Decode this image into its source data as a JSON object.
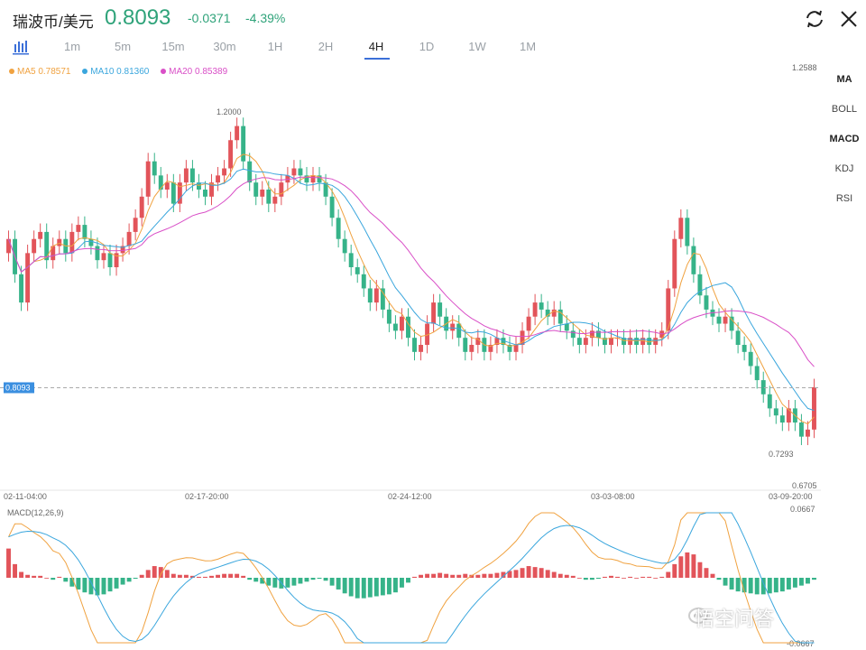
{
  "header": {
    "pair": "瑞波币/美元",
    "price": "0.8093",
    "change": "-0.0371",
    "change_pct": "-4.39%",
    "price_color": "#2fa37a"
  },
  "tabs": [
    {
      "label": "1m"
    },
    {
      "label": "5m"
    },
    {
      "label": "15m"
    },
    {
      "label": "30m"
    },
    {
      "label": "1H"
    },
    {
      "label": "2H"
    },
    {
      "label": "4H",
      "active": true
    },
    {
      "label": "1D"
    },
    {
      "label": "1W"
    },
    {
      "label": "1M"
    }
  ],
  "legend": {
    "ma5": "MA5 0.78571",
    "ma10": "MA10 0.81360",
    "ma20": "MA20 0.85389",
    "ma5_color": "#f0a240",
    "ma10_color": "#3aa6dd",
    "ma20_color": "#d94fc7"
  },
  "indicators": [
    "MA",
    "BOLL",
    "MACD",
    "KDJ",
    "RSI"
  ],
  "chart_data": {
    "type": "candlestick",
    "y_axis_top": "1.2588",
    "y_axis_bottom": "0.6705",
    "y_range": [
      0.6705,
      1.2588
    ],
    "current_price_label": "0.8093",
    "current_price": 0.8093,
    "high_label": "1.2000",
    "high": 1.2,
    "low_label": "0.7293",
    "low": 0.7293,
    "x_labels": [
      "02-11-04:00",
      "02-17-20:00",
      "02-24-12:00",
      "03-03-08:00",
      "03-09-20:00"
    ],
    "up_color": "#e2545a",
    "down_color": "#36b389",
    "closes": [
      1.02,
      0.97,
      0.93,
      1.0,
      1.02,
      1.03,
      0.99,
      1.01,
      1.02,
      1.0,
      1.03,
      1.04,
      1.02,
      1.01,
      0.99,
      1.0,
      0.98,
      1.0,
      1.01,
      1.03,
      1.05,
      1.08,
      1.13,
      1.11,
      1.09,
      1.1,
      1.07,
      1.1,
      1.12,
      1.1,
      1.09,
      1.08,
      1.1,
      1.11,
      1.12,
      1.16,
      1.18,
      1.13,
      1.1,
      1.08,
      1.09,
      1.07,
      1.08,
      1.1,
      1.11,
      1.12,
      1.11,
      1.1,
      1.11,
      1.1,
      1.08,
      1.05,
      1.02,
      1.0,
      0.98,
      0.97,
      0.95,
      0.93,
      0.95,
      0.92,
      0.9,
      0.89,
      0.91,
      0.88,
      0.86,
      0.87,
      0.9,
      0.93,
      0.91,
      0.89,
      0.9,
      0.88,
      0.86,
      0.87,
      0.88,
      0.86,
      0.87,
      0.88,
      0.87,
      0.86,
      0.87,
      0.89,
      0.91,
      0.93,
      0.92,
      0.91,
      0.92,
      0.9,
      0.89,
      0.88,
      0.87,
      0.88,
      0.89,
      0.88,
      0.87,
      0.88,
      0.88,
      0.87,
      0.88,
      0.87,
      0.88,
      0.87,
      0.88,
      0.89,
      0.95,
      1.02,
      1.05,
      1.01,
      0.97,
      0.94,
      0.92,
      0.91,
      0.9,
      0.91,
      0.89,
      0.87,
      0.86,
      0.84,
      0.82,
      0.8,
      0.78,
      0.77,
      0.76,
      0.78,
      0.76,
      0.74,
      0.75,
      0.81
    ],
    "macd_label": "MACD(12,26,9)",
    "macd_top": "0.0667",
    "macd_bottom": "-0.0667",
    "macd_range": [
      -0.0667,
      0.0667
    ],
    "macd_hist": [
      0.03,
      0.014,
      0.006,
      0.003,
      0.002,
      0.002,
      0.0,
      -0.002,
      0.001,
      -0.004,
      -0.009,
      -0.012,
      -0.015,
      -0.017,
      -0.018,
      -0.017,
      -0.014,
      -0.011,
      -0.007,
      -0.004,
      -0.001,
      0.003,
      0.008,
      0.012,
      0.011,
      0.008,
      0.004,
      0.003,
      0.003,
      0.002,
      0.001,
      0.001,
      0.002,
      0.003,
      0.004,
      0.004,
      0.004,
      0.002,
      -0.002,
      -0.004,
      -0.006,
      -0.008,
      -0.01,
      -0.011,
      -0.01,
      -0.008,
      -0.006,
      -0.004,
      -0.002,
      -0.001,
      -0.003,
      -0.008,
      -0.012,
      -0.016,
      -0.019,
      -0.021,
      -0.021,
      -0.02,
      -0.019,
      -0.018,
      -0.017,
      -0.015,
      -0.01,
      -0.005,
      0.001,
      0.003,
      0.004,
      0.004,
      0.005,
      0.004,
      0.003,
      0.003,
      0.004,
      0.003,
      0.003,
      0.004,
      0.004,
      0.005,
      0.006,
      0.007,
      0.008,
      0.01,
      0.012,
      0.011,
      0.01,
      0.008,
      0.006,
      0.004,
      0.003,
      0.002,
      0.0,
      -0.002,
      -0.002,
      -0.001,
      0.001,
      0.002,
      0.001,
      0.0,
      0.001,
      0.0,
      0.001,
      0.001,
      0.0,
      0.001,
      0.006,
      0.014,
      0.022,
      0.026,
      0.024,
      0.016,
      0.01,
      0.004,
      -0.002,
      -0.008,
      -0.012,
      -0.014,
      -0.015,
      -0.016,
      -0.017,
      -0.017,
      -0.016,
      -0.015,
      -0.014,
      -0.012,
      -0.01,
      -0.008,
      -0.006,
      -0.002
    ]
  },
  "watermark": "悟空问答"
}
